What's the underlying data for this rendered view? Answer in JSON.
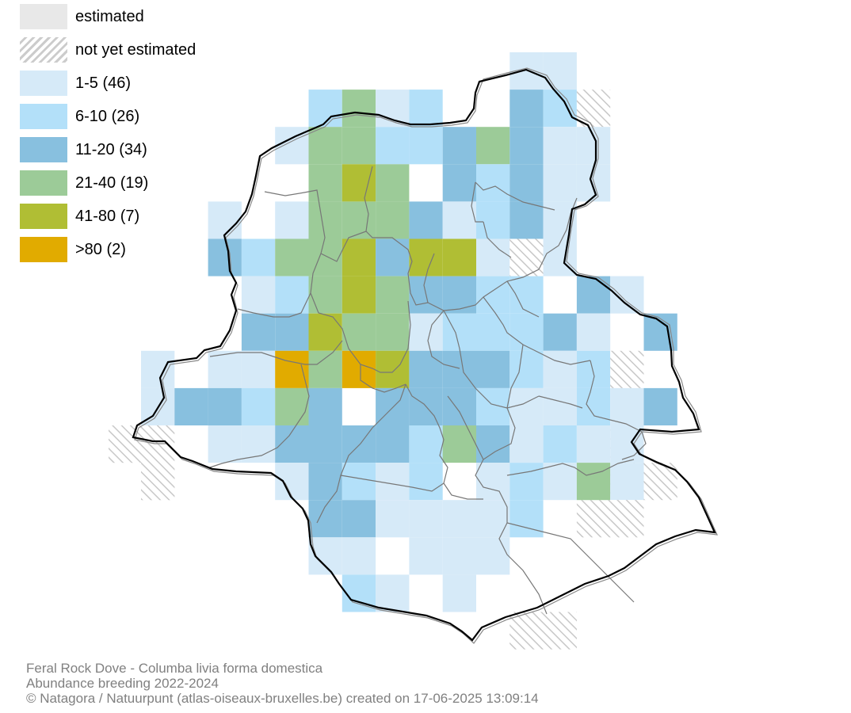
{
  "legend": {
    "items": [
      {
        "id": "estimated",
        "label": "estimated",
        "color": "#e8e8e8",
        "pattern": "solid"
      },
      {
        "id": "not-yet-estimated",
        "label": "not yet estimated",
        "color": "#cccccc",
        "pattern": "hatch"
      },
      {
        "id": "class-1",
        "label": "1-5 (46)",
        "color": "#d6eaf8",
        "pattern": "solid"
      },
      {
        "id": "class-2",
        "label": "6-10 (26)",
        "color": "#b3e0f9",
        "pattern": "solid"
      },
      {
        "id": "class-3",
        "label": "11-20 (34)",
        "color": "#88c0df",
        "pattern": "solid"
      },
      {
        "id": "class-4",
        "label": "21-40 (19)",
        "color": "#9ccb98",
        "pattern": "solid"
      },
      {
        "id": "class-5",
        "label": "41-80 (7)",
        "color": "#b0be34",
        "pattern": "solid"
      },
      {
        "id": "class-6",
        "label": ">80 (2)",
        "color": "#e1ab00",
        "pattern": "solid"
      }
    ]
  },
  "footer": {
    "species": "Feral Rock Dove - Columba livia forma domestica",
    "subtitle": "Abundance breeding 2022-2024",
    "credit": "© Natagora / Natuurpunt (atlas-oiseaux-bruxelles.be) created on 17-06-2025 13:09:14"
  },
  "grid": {
    "rows": [
      {
        "row": 0,
        "cells": [
          [
            11,
            1
          ],
          [
            12,
            1
          ]
        ]
      },
      {
        "row": 1,
        "cells": [
          [
            5,
            2
          ],
          [
            6,
            4
          ],
          [
            7,
            1
          ],
          [
            8,
            2
          ],
          [
            11,
            3
          ],
          [
            12,
            2
          ],
          [
            13,
            7
          ]
        ]
      },
      {
        "row": 2,
        "cells": [
          [
            4,
            1
          ],
          [
            5,
            4
          ],
          [
            6,
            4
          ],
          [
            7,
            2
          ],
          [
            8,
            2
          ],
          [
            9,
            3
          ],
          [
            10,
            4
          ],
          [
            11,
            3
          ],
          [
            12,
            1
          ],
          [
            13,
            1
          ]
        ]
      },
      {
        "row": 3,
        "cells": [
          [
            5,
            4
          ],
          [
            6,
            5
          ],
          [
            7,
            4
          ],
          [
            9,
            3
          ],
          [
            10,
            2
          ],
          [
            11,
            3
          ],
          [
            12,
            1
          ],
          [
            13,
            1
          ]
        ]
      },
      {
        "row": 4,
        "cells": [
          [
            2,
            1
          ],
          [
            4,
            1
          ],
          [
            5,
            4
          ],
          [
            6,
            4
          ],
          [
            7,
            4
          ],
          [
            8,
            3
          ],
          [
            9,
            1
          ],
          [
            10,
            2
          ],
          [
            11,
            3
          ],
          [
            12,
            1
          ]
        ]
      },
      {
        "row": 5,
        "cells": [
          [
            2,
            3
          ],
          [
            3,
            2
          ],
          [
            4,
            4
          ],
          [
            5,
            4
          ],
          [
            6,
            5
          ],
          [
            7,
            3
          ],
          [
            8,
            5
          ],
          [
            9,
            5
          ],
          [
            10,
            1
          ],
          [
            11,
            7
          ],
          [
            12,
            1
          ]
        ]
      },
      {
        "row": 6,
        "cells": [
          [
            3,
            1
          ],
          [
            4,
            2
          ],
          [
            5,
            4
          ],
          [
            6,
            5
          ],
          [
            7,
            4
          ],
          [
            8,
            3
          ],
          [
            9,
            3
          ],
          [
            10,
            2
          ],
          [
            11,
            2
          ],
          [
            13,
            3
          ],
          [
            14,
            1
          ]
        ]
      },
      {
        "row": 7,
        "cells": [
          [
            3,
            3
          ],
          [
            4,
            3
          ],
          [
            5,
            5
          ],
          [
            6,
            4
          ],
          [
            7,
            4
          ],
          [
            8,
            1
          ],
          [
            9,
            2
          ],
          [
            10,
            2
          ],
          [
            11,
            2
          ],
          [
            12,
            3
          ],
          [
            13,
            1
          ],
          [
            15,
            3
          ]
        ]
      },
      {
        "row": 8,
        "cells": [
          [
            0,
            1
          ],
          [
            2,
            1
          ],
          [
            3,
            1
          ],
          [
            4,
            6
          ],
          [
            5,
            4
          ],
          [
            6,
            6
          ],
          [
            7,
            5
          ],
          [
            8,
            3
          ],
          [
            9,
            3
          ],
          [
            10,
            3
          ],
          [
            11,
            2
          ],
          [
            12,
            1
          ],
          [
            13,
            2
          ],
          [
            14,
            7
          ]
        ]
      },
      {
        "row": 9,
        "cells": [
          [
            0,
            1
          ],
          [
            1,
            3
          ],
          [
            2,
            3
          ],
          [
            3,
            2
          ],
          [
            4,
            4
          ],
          [
            5,
            3
          ],
          [
            7,
            3
          ],
          [
            8,
            3
          ],
          [
            9,
            3
          ],
          [
            10,
            2
          ],
          [
            11,
            1
          ],
          [
            12,
            1
          ],
          [
            13,
            2
          ],
          [
            14,
            1
          ],
          [
            15,
            3
          ]
        ]
      },
      {
        "row": 10,
        "cells": [
          [
            -1,
            7
          ],
          [
            2,
            1
          ],
          [
            3,
            1
          ],
          [
            4,
            3
          ],
          [
            5,
            3
          ],
          [
            6,
            3
          ],
          [
            7,
            3
          ],
          [
            8,
            2
          ],
          [
            9,
            4
          ],
          [
            10,
            3
          ],
          [
            11,
            1
          ],
          [
            12,
            2
          ],
          [
            13,
            1
          ],
          [
            14,
            1
          ]
        ]
      },
      {
        "row": 11,
        "cells": [
          [
            0,
            7
          ],
          [
            4,
            1
          ],
          [
            5,
            3
          ],
          [
            6,
            2
          ],
          [
            7,
            1
          ],
          [
            8,
            2
          ],
          [
            10,
            1
          ],
          [
            11,
            2
          ],
          [
            12,
            1
          ],
          [
            13,
            4
          ],
          [
            14,
            1
          ],
          [
            15,
            7
          ]
        ]
      },
      {
        "row": 12,
        "cells": [
          [
            5,
            3
          ],
          [
            6,
            3
          ],
          [
            7,
            1
          ],
          [
            8,
            1
          ],
          [
            9,
            1
          ],
          [
            10,
            1
          ],
          [
            11,
            2
          ],
          [
            14,
            7
          ]
        ]
      },
      {
        "row": 13,
        "cells": [
          [
            5,
            1
          ],
          [
            6,
            1
          ],
          [
            8,
            1
          ],
          [
            9,
            1
          ],
          [
            10,
            1
          ]
        ]
      },
      {
        "row": 14,
        "cells": [
          [
            6,
            2
          ],
          [
            7,
            1
          ],
          [
            9,
            1
          ]
        ]
      },
      {
        "row": 15,
        "cells": [
          [
            11,
            7
          ],
          [
            12,
            7
          ]
        ]
      },
      {
        "row": 1,
        "cells": [
          [
            13,
            7
          ]
        ]
      },
      {
        "row": 5,
        "cells": [
          [
            11,
            7
          ]
        ]
      },
      {
        "row": 8,
        "cells": [
          [
            14,
            7
          ]
        ]
      }
    ]
  }
}
